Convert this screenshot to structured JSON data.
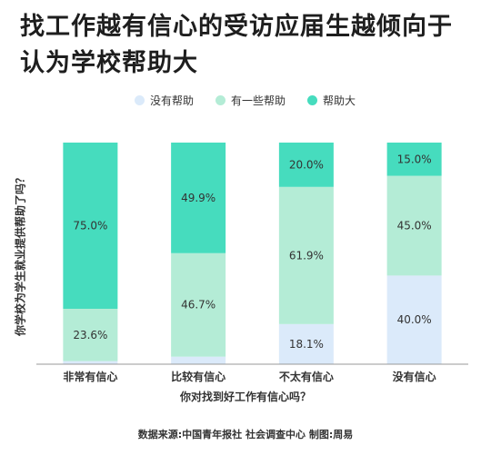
{
  "chart_data": {
    "type": "bar",
    "stacked": true,
    "title": "找工作越有信心的受访应届生越倾向于认为学校帮助大",
    "xlabel": "你对找到好工作有信心吗？",
    "ylabel": "你学校为学生就业提供帮助了吗？",
    "categories": [
      "非常有信心",
      "比较有信心",
      "不太有信心",
      "没有信心"
    ],
    "series": [
      {
        "name": "没有帮助",
        "color": "#dbeafa",
        "values": [
          1.4,
          3.4,
          18.1,
          40.0
        ],
        "labels": [
          "",
          "",
          "18.1%",
          "40.0%"
        ]
      },
      {
        "name": "有一些帮助",
        "color": "#b4ecd6",
        "values": [
          23.6,
          46.7,
          61.9,
          45.0
        ],
        "labels": [
          "23.6%",
          "46.7%",
          "61.9%",
          "45.0%"
        ]
      },
      {
        "name": "帮助大",
        "color": "#46dcbe",
        "values": [
          75.0,
          49.9,
          20.0,
          15.0
        ],
        "labels": [
          "75.0%",
          "49.9%",
          "20.0%",
          "15.0%"
        ]
      }
    ],
    "ylim": [
      0,
      100
    ],
    "legend": "top",
    "grid": false
  },
  "source": "数据来源:中国青年报社 社会调查中心  制图:周易"
}
